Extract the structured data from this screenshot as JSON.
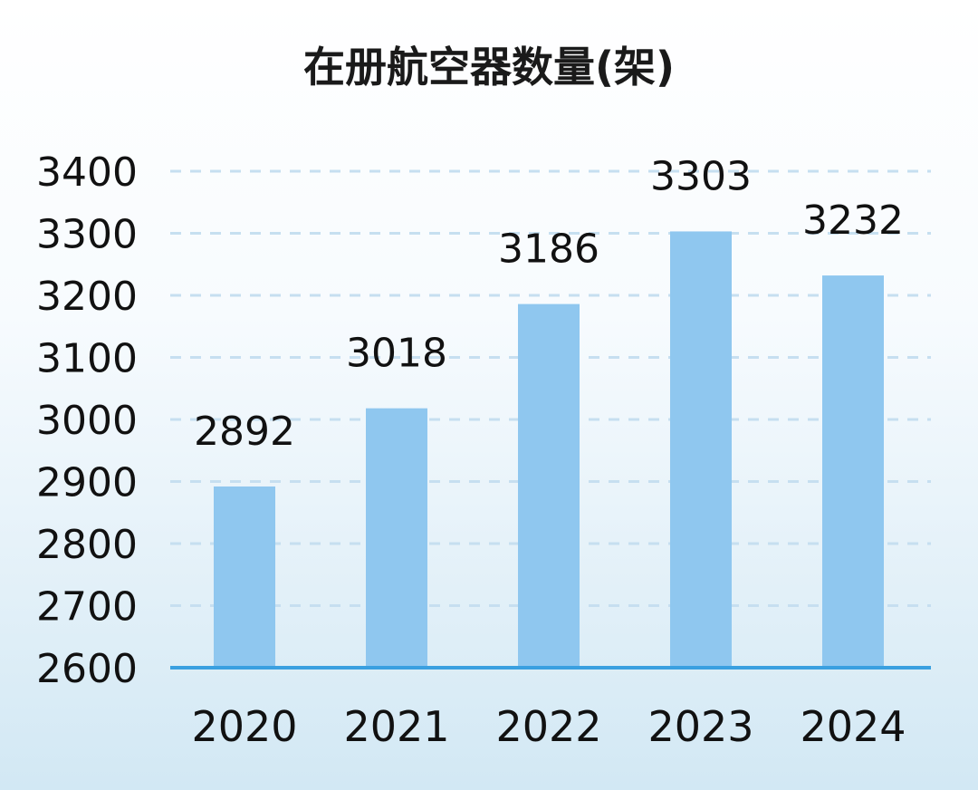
{
  "chart_data": {
    "type": "bar",
    "title": "在册航空器数量(架)",
    "categories": [
      "2020",
      "2021",
      "2022",
      "2023",
      "2024"
    ],
    "values": [
      2892,
      3018,
      3186,
      3303,
      3232
    ],
    "ylim": [
      2600,
      3400
    ],
    "yticks": [
      2600,
      2700,
      2800,
      2900,
      3000,
      3100,
      3200,
      3300,
      3400
    ],
    "grid": true,
    "colors": {
      "bar": "#8fc7ef",
      "axis": "#3aa0e0",
      "grid": "#c6dff0"
    }
  }
}
